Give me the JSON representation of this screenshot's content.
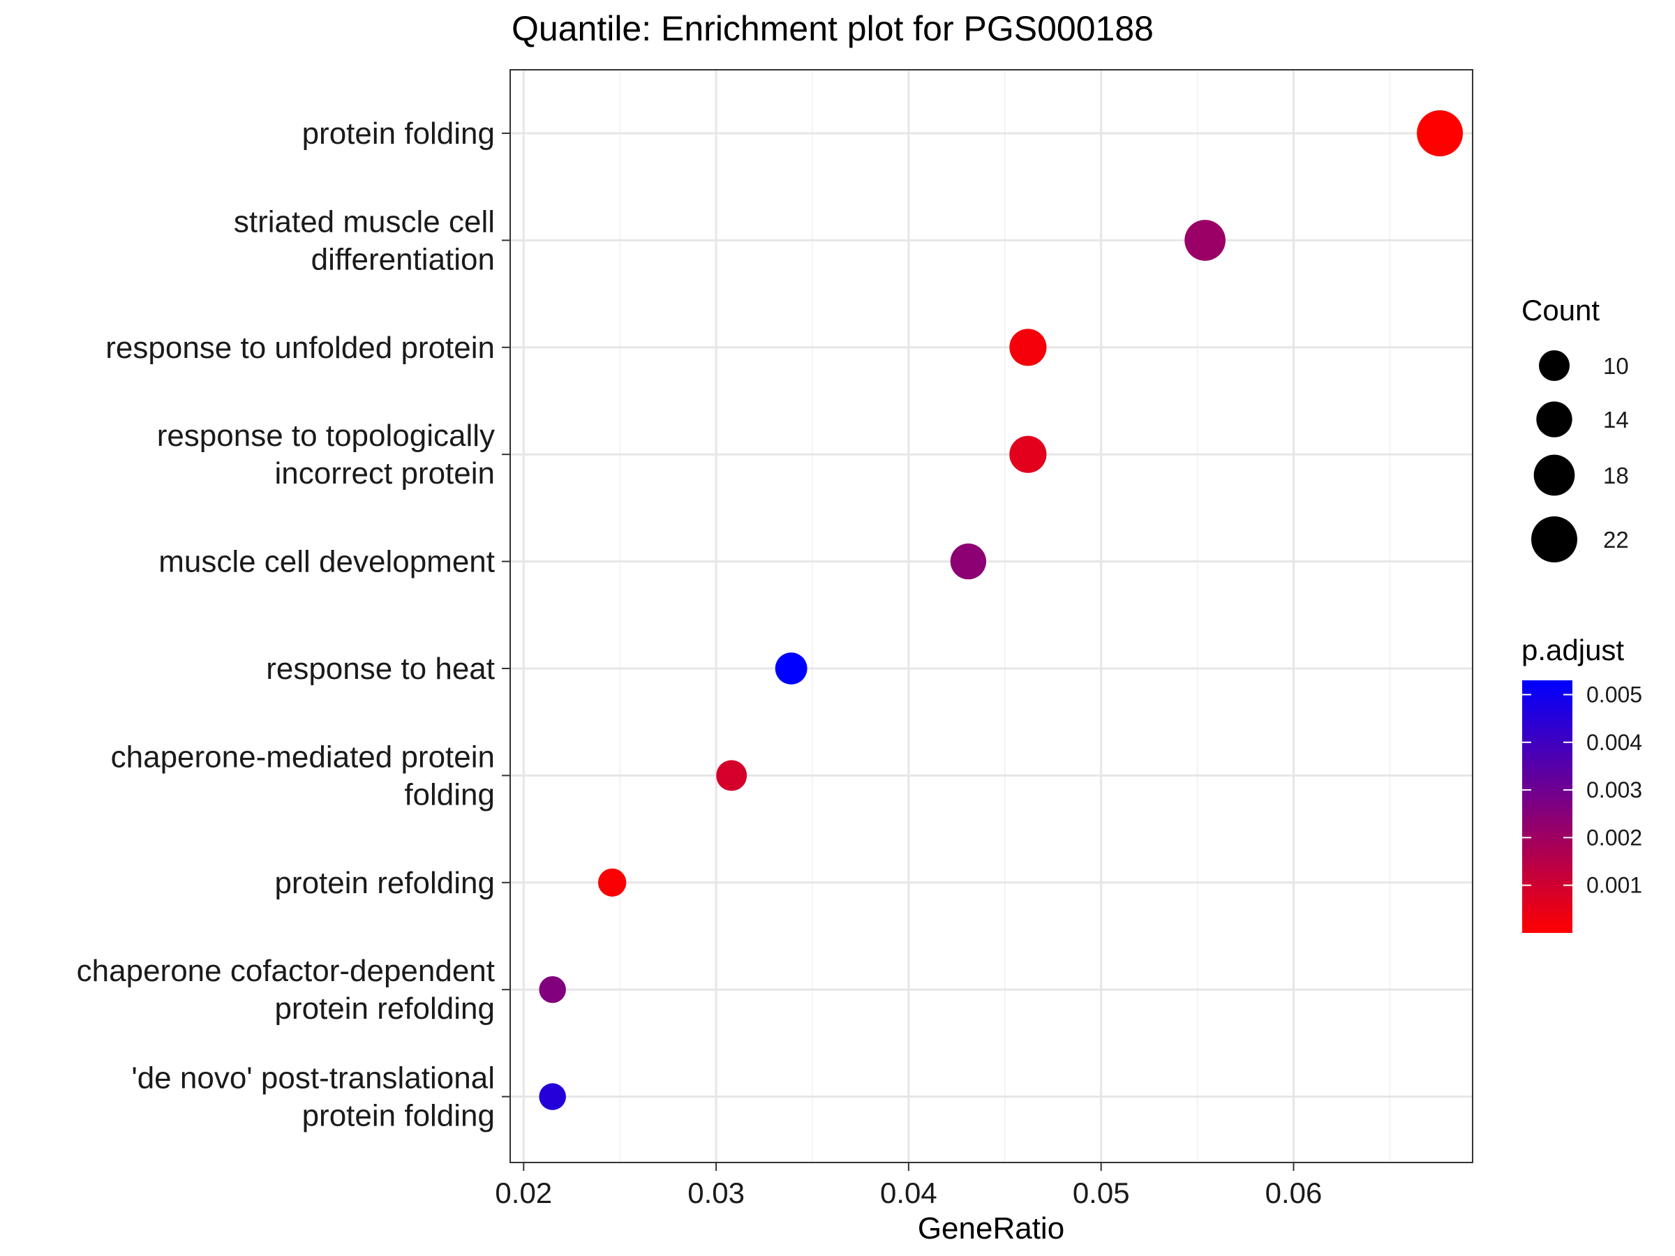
{
  "chart_data": {
    "type": "scatter",
    "title": "Quantile: Enrichment plot for PGS000188",
    "xlabel": "GeneRatio",
    "ylabel": "",
    "xlim": [
      0.0193,
      0.0693
    ],
    "xticks": [
      0.02,
      0.03,
      0.04,
      0.05,
      0.06
    ],
    "xtick_labels": [
      "0.02",
      "0.03",
      "0.04",
      "0.05",
      "0.06"
    ],
    "grid": true,
    "categories": [
      {
        "lines": [
          "protein folding"
        ],
        "x": 0.0676,
        "count": 22,
        "p_adjust": 0.0
      },
      {
        "lines": [
          "striated muscle cell",
          "differentiation"
        ],
        "x": 0.0554,
        "count": 18,
        "p_adjust": 0.0021
      },
      {
        "lines": [
          "response to unfolded protein"
        ],
        "x": 0.0462,
        "count": 15,
        "p_adjust": 0.0002
      },
      {
        "lines": [
          "response to topologically",
          "incorrect protein"
        ],
        "x": 0.0462,
        "count": 15,
        "p_adjust": 0.0006
      },
      {
        "lines": [
          "muscle cell development"
        ],
        "x": 0.0431,
        "count": 14,
        "p_adjust": 0.0024
      },
      {
        "lines": [
          "response to heat"
        ],
        "x": 0.0339,
        "count": 11,
        "p_adjust": 0.0053
      },
      {
        "lines": [
          "chaperone-mediated protein",
          "folding"
        ],
        "x": 0.0308,
        "count": 10,
        "p_adjust": 0.0009
      },
      {
        "lines": [
          "protein refolding"
        ],
        "x": 0.0246,
        "count": 8,
        "p_adjust": 0.0001
      },
      {
        "lines": [
          "chaperone cofactor-dependent",
          "protein refolding"
        ],
        "x": 0.0215,
        "count": 7,
        "p_adjust": 0.0026
      },
      {
        "lines": [
          "'de novo' post-translational",
          "protein folding"
        ],
        "x": 0.0215,
        "count": 7,
        "p_adjust": 0.0045
      }
    ],
    "size_legend": {
      "title": "Count",
      "entries": [
        {
          "label": "10",
          "count": 10
        },
        {
          "label": "14",
          "count": 14
        },
        {
          "label": "18",
          "count": 18
        },
        {
          "label": "22",
          "count": 22
        }
      ]
    },
    "color_legend": {
      "title": "p.adjust",
      "range": [
        0.0,
        0.0053
      ],
      "low_color": "#ff0000",
      "high_color": "#0000ff",
      "ticks": [
        {
          "label": "0.005",
          "value": 0.005
        },
        {
          "label": "0.004",
          "value": 0.004
        },
        {
          "label": "0.003",
          "value": 0.003
        },
        {
          "label": "0.002",
          "value": 0.002
        },
        {
          "label": "0.001",
          "value": 0.001
        }
      ]
    }
  }
}
